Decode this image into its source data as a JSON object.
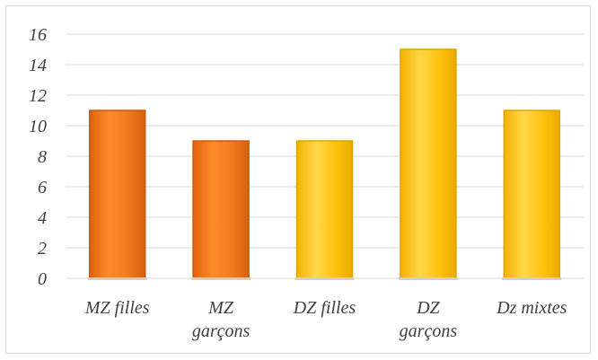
{
  "chart_data": {
    "type": "bar",
    "categories": [
      "MZ filles",
      "MZ garçons",
      "DZ filles",
      "DZ garçons",
      "Dz mixtes"
    ],
    "category_lines": [
      [
        "MZ filles"
      ],
      [
        "MZ",
        "garçons"
      ],
      [
        "DZ filles"
      ],
      [
        "DZ",
        "garçons"
      ],
      [
        "Dz mixtes"
      ]
    ],
    "values": [
      11,
      9,
      9,
      15,
      11
    ],
    "bar_colors": [
      "#F07A1E",
      "#F07A1E",
      "#FFC20E",
      "#FFC20E",
      "#FFC20E"
    ],
    "bar_edge_colors": [
      "#C55A0E",
      "#C55A0E",
      "#E0A200",
      "#E0A200",
      "#E0A200"
    ],
    "ylim": [
      0,
      16
    ],
    "yticks": [
      0,
      2,
      4,
      6,
      8,
      10,
      12,
      14,
      16
    ],
    "grid": true,
    "grid_color": "#d9d9d9",
    "legend": "none"
  }
}
